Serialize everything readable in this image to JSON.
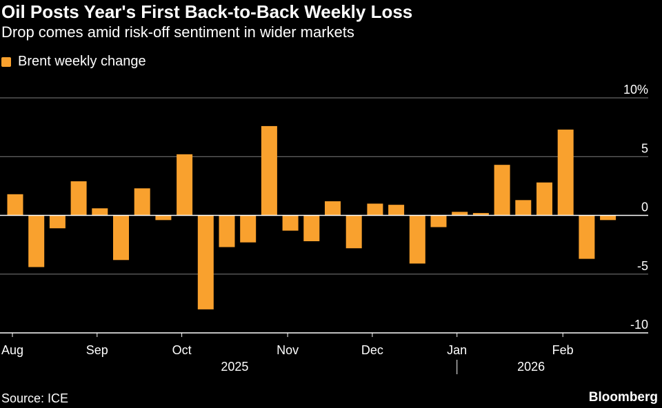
{
  "header": {
    "title": "Oil Posts Year's First Back-to-Back Weekly Loss",
    "subtitle": "Drop comes amid risk-off sentiment in wider markets"
  },
  "footer": {
    "source": "Source: ICE",
    "brand": "Bloomberg"
  },
  "colors": {
    "bar": "#f9a12e",
    "grid": "#7f7f7f",
    "zero_line": "#ffffff",
    "background": "#000000",
    "text": "#ffffff"
  },
  "chart_data": {
    "type": "bar",
    "legend": {
      "entries": [
        "Brent weekly change"
      ],
      "placement": "top-left"
    },
    "y_axis": {
      "position": "right",
      "range": [
        -10,
        10
      ],
      "ticks": [
        10,
        5,
        0,
        -5,
        -10
      ],
      "tick_labels": [
        "10%",
        "5",
        "0",
        "-5",
        "-10"
      ]
    },
    "x_axis": {
      "month_labels": [
        "Aug",
        "Sep",
        "Oct",
        "Nov",
        "Dec",
        "Jan",
        "Feb"
      ],
      "month_start_weeks": [
        0,
        4,
        8,
        13,
        17,
        21,
        26
      ],
      "year_labels": [
        {
          "label": "2025",
          "center_week": 10.5
        },
        {
          "label": "2026",
          "center_week": 24.5
        }
      ],
      "year_divider_week": 21
    },
    "grid": true,
    "series": [
      {
        "name": "Brent weekly change",
        "values": [
          1.8,
          -4.4,
          -1.1,
          2.9,
          0.6,
          -3.8,
          2.3,
          -0.4,
          5.2,
          -8.0,
          -2.7,
          -2.3,
          7.6,
          -1.3,
          -2.2,
          1.2,
          -2.8,
          1.0,
          0.9,
          -4.1,
          -1.0,
          0.3,
          0.2,
          4.3,
          1.3,
          2.8,
          7.3,
          -3.7,
          -0.4
        ]
      }
    ]
  }
}
